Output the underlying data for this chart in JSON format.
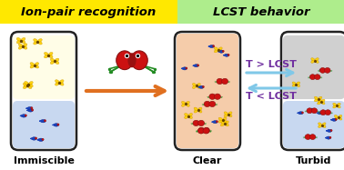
{
  "header_left_text": "Ion-pair recognition",
  "header_right_text": "LCST behavior",
  "header_left_color": "#FFE800",
  "header_right_color": "#AEED8C",
  "vial_labels": [
    "Immiscible",
    "Clear",
    "Turbid"
  ],
  "arrow_forward_color": "#E07020",
  "arrow_back_color": "#80C8E8",
  "lcst_text_color": "#7030A0",
  "lcst_upper": "T > LCST",
  "lcst_lower": "T < LCST",
  "bg_color": "#FFFFFF",
  "vial_border": "#222222",
  "vial1_top": "#FFFDE7",
  "vial1_bot": "#C8D8F0",
  "vial2_fill": "#F5CCAA",
  "vial3_top": "#D0D0D0",
  "vial3_bot": "#C8D8F0",
  "yellow_color": "#FFD000",
  "blue_color": "#1A44BB",
  "red_color": "#CC1111",
  "green_color": "#228B22"
}
